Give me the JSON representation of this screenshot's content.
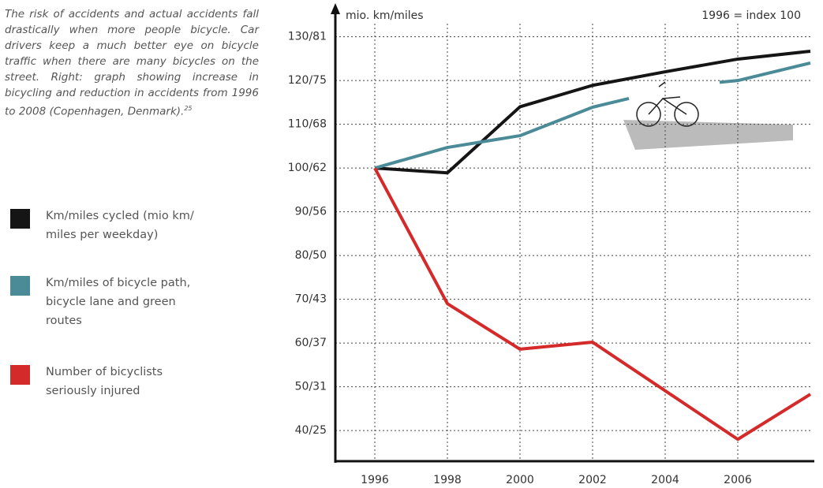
{
  "caption": {
    "text": "The risk of accidents and actual accidents fall drastically when more people bicycle. Car drivers keep a much better eye on bicycle traffic when there are many bicycles on the street. Right: graph showing increase in bicycling and reduction in accidents from 1996 to 2008 (Copenhagen, Denmark).",
    "footnote_ref": "25"
  },
  "chart_data": {
    "type": "line",
    "y_label": "mio. km/miles",
    "annotation": "1996 = index 100",
    "xlim": [
      1995,
      2008
    ],
    "xticks": [
      1996,
      1998,
      2000,
      2002,
      2004,
      2006
    ],
    "ylim": [
      33,
      133
    ],
    "yticks": [
      {
        "value": 130,
        "label": "130/81"
      },
      {
        "value": 120,
        "label": "120/75"
      },
      {
        "value": 110,
        "label": "110/68"
      },
      {
        "value": 100,
        "label": "100/62"
      },
      {
        "value": 90,
        "label": "90/56"
      },
      {
        "value": 80,
        "label": "80/50"
      },
      {
        "value": 70,
        "label": "70/43"
      },
      {
        "value": 60,
        "label": "60/37"
      },
      {
        "value": 50,
        "label": "50/31"
      },
      {
        "value": 40,
        "label": "40/25"
      }
    ],
    "grid": true,
    "series": [
      {
        "name": "Km/miles cycled (mio km/ miles per weekday)",
        "color": "#151515",
        "x": [
          1996,
          1998,
          2000,
          2002,
          2004,
          2006,
          2008
        ],
        "values": [
          100,
          98.9,
          114,
          118.9,
          122,
          124.9,
          126.7
        ]
      },
      {
        "name": "Km/miles of bicycle path, bicycle lane and green routes",
        "color": "#4b8b97",
        "x": [
          1996,
          1998,
          2000,
          2002,
          2003,
          2004,
          2005.5,
          2006,
          2008
        ],
        "values": [
          100,
          104.7,
          107.4,
          113.9,
          115.9,
          null,
          119.6,
          120,
          124
        ]
      },
      {
        "name": "Number of bicyclists seriously injured",
        "color": "#d42a2a",
        "x": [
          1996,
          1998,
          2000,
          2002,
          2006,
          2008
        ],
        "values": [
          100,
          69,
          58.6,
          60.2,
          38,
          48.3
        ]
      }
    ]
  }
}
